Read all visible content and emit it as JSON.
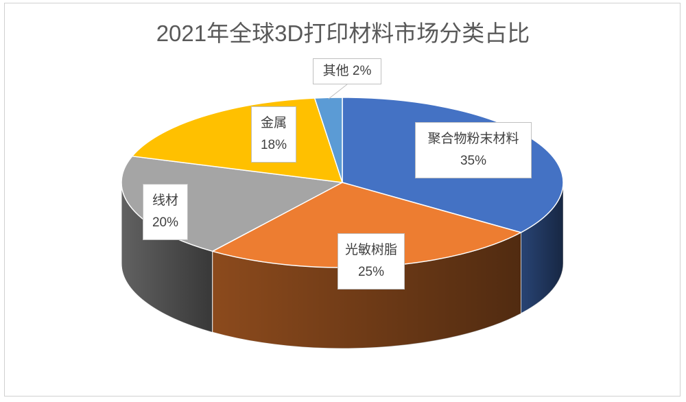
{
  "chart_data": {
    "type": "pie",
    "style": "3d-pie",
    "title": "2021年全球3D打印材料市场分类占比",
    "slices": [
      {
        "name": "聚合物粉末材料",
        "value": 35,
        "label": "35%",
        "color": "#4472c4"
      },
      {
        "name": "光敏树脂",
        "value": 25,
        "label": "25%",
        "color": "#ed7d31"
      },
      {
        "name": "线材",
        "value": 20,
        "label": "20%",
        "color": "#a5a5a5"
      },
      {
        "name": "金属",
        "value": 18,
        "label": "18%",
        "color": "#ffc000"
      },
      {
        "name": "其他",
        "value": 2,
        "label": "2%",
        "color": "#5b9bd5"
      }
    ],
    "legend": "none"
  }
}
